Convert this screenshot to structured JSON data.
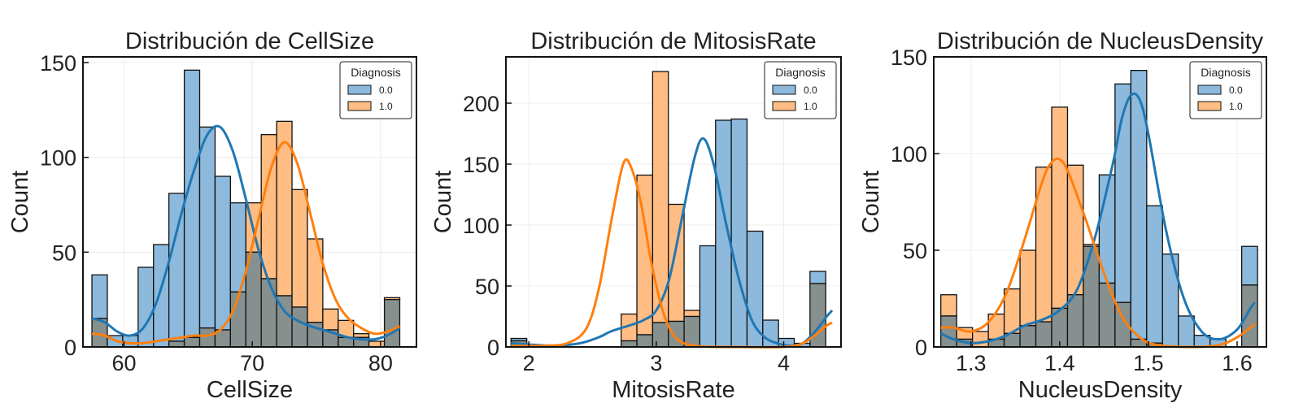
{
  "colors": {
    "series_0": "#1f77b4",
    "series_1": "#ff7f0e",
    "bar_0": "#8cb9dc",
    "bar_1": "#ffbd84",
    "overlap": "#86908f"
  },
  "chart_data": [
    {
      "type": "bar",
      "title": "Distribución de CellSize",
      "xlabel": "CellSize",
      "ylabel": "Count",
      "xlim": [
        56.8,
        82.8
      ],
      "ylim": [
        0,
        153
      ],
      "xticks": [
        "60",
        "70",
        "80"
      ],
      "yticks": [
        "0",
        "50",
        "100",
        "150"
      ],
      "grid": true,
      "legend_title": "Diagnosis",
      "legend_position": "top-right",
      "bin_start": 57.5,
      "bin_width": 1.2,
      "series": [
        {
          "name": "0.0",
          "color": "#1f77b4",
          "values": [
            38,
            6,
            6,
            42,
            54,
            81,
            146,
            116,
            90,
            76,
            50,
            36,
            27,
            21,
            13,
            9,
            5,
            5,
            0,
            25
          ],
          "kde": [
            [
              57.5,
              15
            ],
            [
              58.5,
              13
            ],
            [
              59.5,
              8
            ],
            [
              60.5,
              6
            ],
            [
              61.5,
              10
            ],
            [
              62.5,
              23
            ],
            [
              63.5,
              45
            ],
            [
              64.5,
              71
            ],
            [
              65.5,
              94
            ],
            [
              66.5,
              112
            ],
            [
              67.5,
              116
            ],
            [
              68.5,
              103
            ],
            [
              69.5,
              78
            ],
            [
              70.5,
              51
            ],
            [
              71.5,
              31
            ],
            [
              72.5,
              19
            ],
            [
              73.5,
              14
            ],
            [
              74.5,
              11
            ],
            [
              75.5,
              9
            ],
            [
              76.5,
              7
            ],
            [
              77.5,
              5
            ],
            [
              78.5,
              4
            ],
            [
              79.5,
              4
            ],
            [
              80.5,
              6
            ],
            [
              81.5,
              10
            ]
          ]
        },
        {
          "name": "1.0",
          "color": "#ff7f0e",
          "values": [
            15,
            0,
            0,
            0,
            0,
            3,
            5,
            10,
            9,
            29,
            76,
            112,
            119,
            83,
            57,
            20,
            14,
            7,
            3,
            26
          ],
          "kde": [
            [
              57.5,
              7
            ],
            [
              58.5,
              6
            ],
            [
              59.5,
              3
            ],
            [
              60.5,
              2
            ],
            [
              61.5,
              2
            ],
            [
              62.5,
              3
            ],
            [
              63.5,
              4
            ],
            [
              64.5,
              5
            ],
            [
              65.5,
              6
            ],
            [
              66.5,
              6
            ],
            [
              67.5,
              9
            ],
            [
              68.5,
              19
            ],
            [
              69.5,
              40
            ],
            [
              70.5,
              68
            ],
            [
              71.5,
              95
            ],
            [
              72.5,
              108
            ],
            [
              73.5,
              97
            ],
            [
              74.5,
              71
            ],
            [
              75.5,
              44
            ],
            [
              76.5,
              25
            ],
            [
              77.5,
              15
            ],
            [
              78.5,
              10
            ],
            [
              79.5,
              7
            ],
            [
              80.5,
              8
            ],
            [
              81.5,
              11
            ]
          ]
        }
      ]
    },
    {
      "type": "bar",
      "title": "Distribución de MitosisRate",
      "xlabel": "MitosisRate",
      "ylabel": "Count",
      "xlim": [
        1.82,
        4.45
      ],
      "ylim": [
        0,
        238
      ],
      "xticks": [
        "2",
        "3",
        "4"
      ],
      "yticks": [
        "0",
        "50",
        "100",
        "150",
        "200"
      ],
      "grid": true,
      "legend_title": "Diagnosis",
      "legend_position": "top-right",
      "bin_start": 1.86,
      "bin_width": 0.1235,
      "series": [
        {
          "name": "0.0",
          "color": "#1f77b4",
          "values": [
            7,
            0,
            0,
            0,
            0,
            0,
            0,
            5,
            10,
            20,
            21,
            25,
            83,
            186,
            187,
            95,
            22,
            7,
            3,
            62
          ],
          "kde": [
            [
              1.86,
              3
            ],
            [
              2.0,
              2
            ],
            [
              2.2,
              1
            ],
            [
              2.4,
              3
            ],
            [
              2.55,
              8
            ],
            [
              2.65,
              13
            ],
            [
              2.8,
              18
            ],
            [
              2.9,
              22
            ],
            [
              3.0,
              30
            ],
            [
              3.1,
              55
            ],
            [
              3.2,
              105
            ],
            [
              3.3,
              155
            ],
            [
              3.37,
              171
            ],
            [
              3.45,
              150
            ],
            [
              3.55,
              100
            ],
            [
              3.65,
              55
            ],
            [
              3.75,
              22
            ],
            [
              3.85,
              8
            ],
            [
              3.95,
              3
            ],
            [
              4.05,
              1
            ],
            [
              4.15,
              3
            ],
            [
              4.25,
              13
            ],
            [
              4.33,
              24
            ],
            [
              4.38,
              30
            ]
          ]
        },
        {
          "name": "1.0",
          "color": "#ff7f0e",
          "values": [
            5,
            0,
            0,
            0,
            0,
            0,
            0,
            27,
            141,
            226,
            117,
            30,
            0,
            0,
            0,
            0,
            0,
            0,
            0,
            52
          ],
          "kde": [
            [
              1.86,
              1
            ],
            [
              2.1,
              1
            ],
            [
              2.3,
              3
            ],
            [
              2.45,
              15
            ],
            [
              2.55,
              48
            ],
            [
              2.65,
              105
            ],
            [
              2.74,
              150
            ],
            [
              2.8,
              148
            ],
            [
              2.88,
              118
            ],
            [
              2.96,
              70
            ],
            [
              3.05,
              30
            ],
            [
              3.15,
              8
            ],
            [
              3.3,
              1
            ],
            [
              3.6,
              0
            ],
            [
              4.0,
              0
            ],
            [
              4.15,
              3
            ],
            [
              4.25,
              10
            ],
            [
              4.33,
              17
            ],
            [
              4.38,
              20
            ]
          ]
        }
      ]
    },
    {
      "type": "bar",
      "title": "Distribución de NucleusDensity",
      "xlabel": "NucleusDensity",
      "ylabel": "Count",
      "xlim": [
        1.258,
        1.633
      ],
      "ylim": [
        0,
        150
      ],
      "xticks": [
        "1.3",
        "1.4",
        "1.5",
        "1.6"
      ],
      "yticks": [
        "0",
        "50",
        "100",
        "150"
      ],
      "grid": true,
      "legend_title": "Diagnosis",
      "legend_position": "top-right",
      "bin_start": 1.266,
      "bin_width": 0.01785,
      "series": [
        {
          "name": "0.0",
          "color": "#1f77b4",
          "values": [
            16,
            4,
            0,
            4,
            7,
            11,
            13,
            20,
            27,
            52,
            89,
            136,
            143,
            73,
            48,
            16,
            6,
            4,
            0,
            52
          ],
          "kde": [
            [
              1.266,
              7
            ],
            [
              1.28,
              4
            ],
            [
              1.3,
              2
            ],
            [
              1.32,
              3
            ],
            [
              1.34,
              6
            ],
            [
              1.36,
              11
            ],
            [
              1.38,
              14
            ],
            [
              1.4,
              19
            ],
            [
              1.42,
              30
            ],
            [
              1.44,
              57
            ],
            [
              1.46,
              95
            ],
            [
              1.47,
              118
            ],
            [
              1.48,
              130
            ],
            [
              1.49,
              128
            ],
            [
              1.5,
              110
            ],
            [
              1.52,
              60
            ],
            [
              1.54,
              25
            ],
            [
              1.56,
              8
            ],
            [
              1.58,
              4
            ],
            [
              1.6,
              9
            ],
            [
              1.615,
              20
            ],
            [
              1.62,
              23
            ]
          ]
        },
        {
          "name": "1.0",
          "color": "#ff7f0e",
          "values": [
            27,
            10,
            8,
            17,
            30,
            50,
            93,
            124,
            94,
            53,
            33,
            23,
            4,
            2,
            0,
            0,
            0,
            0,
            0,
            32
          ],
          "kde": [
            [
              1.266,
              10
            ],
            [
              1.28,
              10
            ],
            [
              1.3,
              8
            ],
            [
              1.32,
              13
            ],
            [
              1.34,
              28
            ],
            [
              1.36,
              55
            ],
            [
              1.38,
              85
            ],
            [
              1.39,
              95
            ],
            [
              1.4,
              97
            ],
            [
              1.41,
              90
            ],
            [
              1.43,
              65
            ],
            [
              1.45,
              38
            ],
            [
              1.47,
              16
            ],
            [
              1.49,
              5
            ],
            [
              1.51,
              1
            ],
            [
              1.55,
              0
            ],
            [
              1.58,
              1
            ],
            [
              1.6,
              5
            ],
            [
              1.615,
              10
            ],
            [
              1.62,
              12
            ]
          ]
        }
      ]
    }
  ]
}
